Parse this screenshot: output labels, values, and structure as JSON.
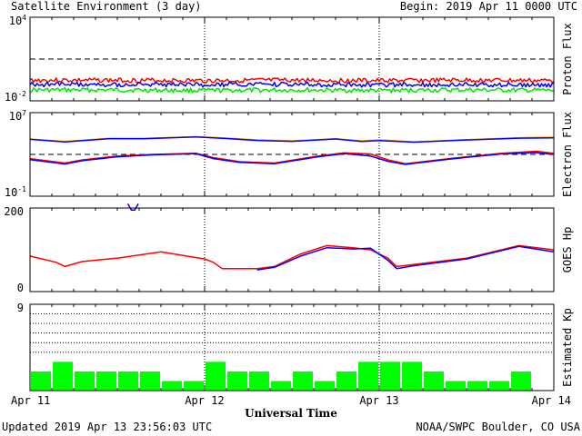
{
  "header": {
    "title": "Satellite Environment (3 day)",
    "begin": "Begin:  2019 Apr 11 0000 UTC"
  },
  "footer": {
    "updated": "Updated 2019 Apr 13 23:56:03 UTC",
    "credit": "NOAA/SWPC Boulder, CO USA"
  },
  "colors": {
    "red": "#ff0000",
    "blue": "#0000ff",
    "green": "#00e600",
    "orange": "#ffa500",
    "kp_bar": "#00ff00"
  },
  "chart_data": [
    {
      "type": "line",
      "ylabel": "Proton Flux",
      "y_scale": "log",
      "ylim": [
        0.01,
        10000
      ],
      "ytick_labels": [
        {
          "base": "10",
          "exp": "4"
        },
        {
          "base": "10",
          "exp": "-2"
        }
      ],
      "x_range_days": [
        0,
        3
      ],
      "threshold_line": 10,
      "series": [
        {
          "color": "red",
          "x": [
            0,
            0.5,
            1,
            1.5,
            2,
            2.5,
            3
          ],
          "y": [
            0.3,
            0.3,
            0.28,
            0.3,
            0.28,
            0.3,
            0.28
          ]
        },
        {
          "color": "blue",
          "x": [
            0,
            0.5,
            1,
            1.5,
            2,
            2.5,
            3
          ],
          "y": [
            0.15,
            0.15,
            0.14,
            0.15,
            0.14,
            0.15,
            0.14
          ]
        },
        {
          "color": "green",
          "x": [
            0,
            0.5,
            1,
            1.5,
            2,
            2.5,
            3
          ],
          "y": [
            0.06,
            0.06,
            0.055,
            0.06,
            0.055,
            0.06,
            0.055
          ]
        }
      ]
    },
    {
      "type": "line",
      "ylabel": "Electron Flux",
      "y_scale": "log",
      "ylim": [
        0.1,
        10000000
      ],
      "ytick_labels": [
        {
          "base": "10",
          "exp": "7"
        },
        {
          "base": "10",
          "exp": "-1"
        }
      ],
      "x_range_days": [
        0,
        3
      ],
      "threshold_line": 1000,
      "series": [
        {
          "color": "orange",
          "x": [
            0,
            0.2,
            0.45,
            0.65,
            0.95,
            1.1,
            1.3,
            1.5,
            1.75,
            1.9,
            2.0,
            2.2,
            2.5,
            2.8,
            3.0
          ],
          "y": [
            30000,
            18000,
            35000,
            35000,
            50000,
            38000,
            25000,
            20000,
            32000,
            20000,
            25000,
            16000,
            26000,
            40000,
            45000
          ]
        },
        {
          "color": "blue",
          "x": [
            0,
            0.2,
            0.45,
            0.65,
            0.95,
            1.1,
            1.3,
            1.5,
            1.75,
            1.9,
            2.0,
            2.2,
            2.5,
            2.8,
            3.0
          ],
          "y": [
            28000,
            16000,
            32000,
            32000,
            47000,
            35000,
            22000,
            18000,
            30000,
            17000,
            21000,
            15000,
            24000,
            36000,
            38000
          ]
        },
        {
          "color": "red",
          "x": [
            0,
            0.2,
            0.3,
            0.5,
            0.7,
            0.95,
            1.05,
            1.2,
            1.4,
            1.65,
            1.8,
            1.95,
            2.05,
            2.15,
            2.4,
            2.7,
            2.9,
            3.0
          ],
          "y": [
            400,
            150,
            300,
            700,
            1000,
            1300,
            500,
            200,
            150,
            700,
            1400,
            1100,
            300,
            130,
            400,
            1300,
            2000,
            1300
          ]
        },
        {
          "color": "blue",
          "x": [
            0,
            0.2,
            0.3,
            0.5,
            0.7,
            0.95,
            1.05,
            1.2,
            1.4,
            1.65,
            1.8,
            1.95,
            2.05,
            2.15,
            2.4,
            2.7,
            2.9,
            3.0
          ],
          "y": [
            320,
            120,
            250,
            600,
            900,
            1200,
            400,
            170,
            130,
            600,
            1200,
            700,
            220,
            110,
            350,
            1100,
            1500,
            1000
          ]
        }
      ]
    },
    {
      "type": "line",
      "ylabel": "GOES Hp",
      "ylim": [
        0,
        200
      ],
      "yticks": [
        0,
        200
      ],
      "x_range_days": [
        0,
        3
      ],
      "series": [
        {
          "color": "red",
          "x": [
            0,
            0.15,
            0.2,
            0.3,
            0.5,
            0.75,
            1.0,
            1.05,
            1.1,
            1.3,
            1.4,
            1.55,
            1.7,
            1.85,
            1.95,
            2.05,
            2.1,
            2.2,
            2.5,
            2.8,
            3.0
          ],
          "y": [
            85,
            70,
            60,
            72,
            80,
            95,
            78,
            70,
            55,
            55,
            60,
            90,
            110,
            105,
            100,
            80,
            60,
            65,
            80,
            110,
            100
          ]
        },
        {
          "color": "blue",
          "x": [
            1.3,
            1.4,
            1.55,
            1.7,
            1.85,
            1.95,
            2.05,
            2.1,
            2.2,
            2.5,
            2.8,
            3.0
          ],
          "y": [
            52,
            58,
            85,
            105,
            102,
            104,
            75,
            55,
            62,
            78,
            108,
            95
          ]
        },
        {
          "color": "blue",
          "x": [
            0.56,
            0.58,
            0.6,
            0.62
          ],
          "y": [
            210,
            195,
            195,
            210
          ]
        }
      ]
    },
    {
      "type": "bar",
      "ylabel": "Estimated Kp",
      "ylim": [
        0,
        9
      ],
      "yticks": [
        9
      ],
      "x_range_days": [
        0,
        3
      ],
      "xtick_labels": [
        "Apr 11",
        "Apr 12",
        "Apr 13",
        "Apr 14"
      ],
      "xlabel": "Universal Time",
      "values": [
        2,
        3,
        2,
        2,
        2,
        2,
        1,
        1,
        3,
        2,
        2,
        1,
        2,
        1,
        2,
        3,
        3,
        3,
        2,
        1,
        1,
        1,
        2,
        0
      ]
    }
  ]
}
